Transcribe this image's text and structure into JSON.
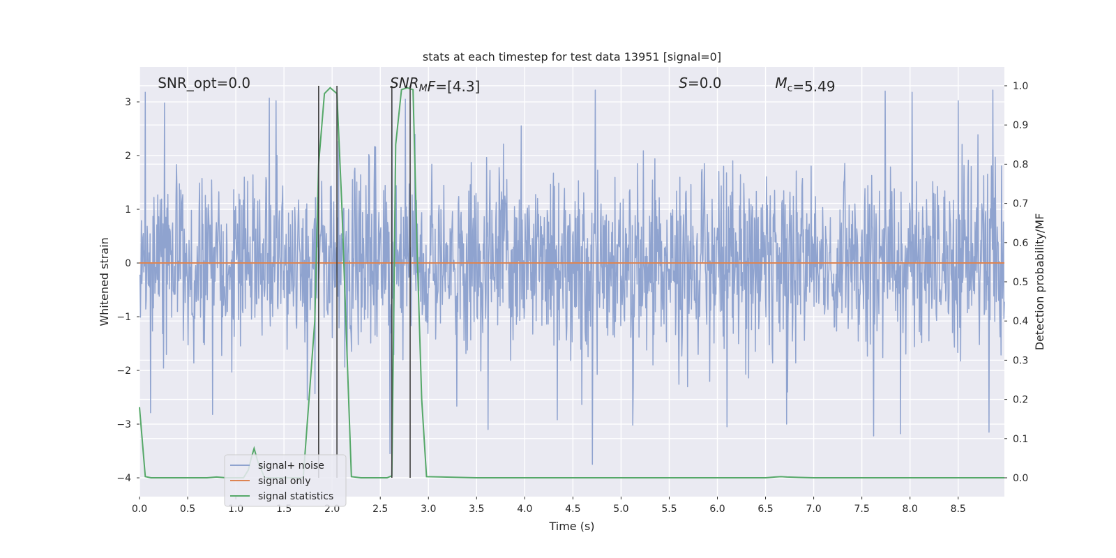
{
  "chart_data": {
    "type": "line",
    "title": "stats at each timestep for test data 13951 [signal=0]",
    "xlabel": "Time (s)",
    "ylabel": "Whitened strain",
    "y2label": "Detection probability/MF",
    "xlim": [
      0.0,
      8.98
    ],
    "ylim": [
      -4.35,
      3.65
    ],
    "y2lim": [
      -0.048,
      1.048
    ],
    "x_ticks": [
      0.0,
      0.5,
      1.0,
      1.5,
      2.0,
      2.5,
      3.0,
      3.5,
      4.0,
      4.5,
      5.0,
      5.5,
      6.0,
      6.5,
      7.0,
      7.5,
      8.0,
      8.5
    ],
    "x_tick_labels": [
      "0.0",
      "0.5",
      "1.0",
      "1.5",
      "2.0",
      "2.5",
      "3.0",
      "3.5",
      "4.0",
      "4.5",
      "5.0",
      "5.5",
      "6.0",
      "6.5",
      "7.0",
      "7.5",
      "8.0",
      "8.5"
    ],
    "y_ticks": [
      3,
      2,
      1,
      0,
      -1,
      -2,
      -3,
      -4
    ],
    "y_tick_labels": [
      "3",
      "2",
      "1",
      "0",
      "−1",
      "−2",
      "−3",
      "−4"
    ],
    "y2_ticks": [
      1.0,
      0.9,
      0.8,
      0.7,
      0.6,
      0.5,
      0.4,
      0.3,
      0.2,
      0.1,
      0.0
    ],
    "y2_tick_labels": [
      "1.0",
      "0.9",
      "0.8",
      "0.7",
      "0.6",
      "0.5",
      "0.4",
      "0.3",
      "0.2",
      "0.1",
      "0.0"
    ],
    "grid": true,
    "legend_position": "lower-left",
    "annotations": [
      {
        "id": "snr-opt",
        "x": 0.19,
        "y": 3.35,
        "parts": [
          {
            "t": "SNR_opt=0.0"
          }
        ]
      },
      {
        "id": "snr-mf",
        "x": 2.6,
        "y": 3.35,
        "parts": [
          {
            "t": "SNR",
            "italic": true
          },
          {
            "t": "M",
            "italic": true,
            "sub": true
          },
          {
            "t": "F",
            "italic": true
          },
          {
            "t": "=[4.3]"
          }
        ]
      },
      {
        "id": "s-value",
        "x": 5.6,
        "y": 3.35,
        "parts": [
          {
            "t": "S",
            "italic": true
          },
          {
            "t": "=0.0"
          }
        ]
      },
      {
        "id": "mc-value",
        "x": 6.6,
        "y": 3.35,
        "parts": [
          {
            "t": "M",
            "italic": true
          },
          {
            "t": "c",
            "sub": true
          },
          {
            "t": "=5.49"
          }
        ]
      }
    ],
    "vlines": {
      "x": [
        1.86,
        2.05,
        2.62,
        2.81
      ],
      "ymin": -4.0,
      "ymax": 3.3,
      "color": "#404040"
    },
    "series": [
      {
        "name": "signal+ noise",
        "color": "#8fa3cf",
        "axis": "left",
        "kind": "noise",
        "std": 0.85,
        "duration": 8.98,
        "samples": 1800,
        "spikes": [
          {
            "x": 0.06,
            "y": 3.18
          },
          {
            "x": 0.26,
            "y": 2.98
          },
          {
            "x": 1.35,
            "y": 3.07
          },
          {
            "x": 1.42,
            "y": 3.02
          },
          {
            "x": 2.62,
            "y": 3.22
          },
          {
            "x": 4.73,
            "y": 3.22
          },
          {
            "x": 7.74,
            "y": 3.2
          },
          {
            "x": 8.02,
            "y": 3.18
          },
          {
            "x": 8.86,
            "y": 3.22
          },
          {
            "x": 8.5,
            "y": 3.02
          },
          {
            "x": 4.7,
            "y": -3.75
          },
          {
            "x": 3.62,
            "y": -3.1
          },
          {
            "x": 7.62,
            "y": -3.22
          },
          {
            "x": 7.9,
            "y": -3.18
          },
          {
            "x": 8.82,
            "y": -3.15
          },
          {
            "x": 2.6,
            "y": -3.55
          },
          {
            "x": 0.76,
            "y": -2.82
          },
          {
            "x": 6.1,
            "y": -3.05
          },
          {
            "x": 5.12,
            "y": -3.02
          },
          {
            "x": 1.74,
            "y": -2.55
          },
          {
            "x": 2.76,
            "y": 3.05
          },
          {
            "x": 4.34,
            "y": -2.92
          },
          {
            "x": 6.72,
            "y": -3.0
          }
        ]
      },
      {
        "name": "signal only",
        "color": "#dd8452",
        "axis": "left",
        "kind": "line",
        "x": [
          0.0,
          8.98
        ],
        "y": [
          0.0,
          0.0
        ]
      },
      {
        "name": "signal statistics",
        "color": "#55a868",
        "axis": "right",
        "kind": "line",
        "x": [
          0.0,
          0.06,
          0.12,
          0.3,
          0.5,
          0.7,
          0.8,
          0.9,
          1.0,
          1.08,
          1.13,
          1.16,
          1.19,
          1.23,
          1.3,
          1.5,
          1.7,
          1.82,
          1.86,
          1.92,
          1.98,
          2.05,
          2.1,
          2.15,
          2.2,
          2.3,
          2.4,
          2.5,
          2.57,
          2.62,
          2.66,
          2.72,
          2.78,
          2.84,
          2.88,
          2.93,
          2.98,
          3.5,
          4.0,
          5.0,
          6.0,
          6.5,
          6.6,
          6.66,
          6.72,
          7.0,
          8.0,
          8.98
        ],
        "y": [
          0.18,
          0.003,
          0.0,
          0.0,
          0.0,
          0.0,
          0.002,
          0.0,
          0.0,
          0.0,
          0.02,
          0.05,
          0.075,
          0.04,
          0.0,
          0.0,
          0.0,
          0.4,
          0.8,
          0.98,
          0.995,
          0.98,
          0.7,
          0.35,
          0.003,
          0.0,
          0.0,
          0.0,
          0.0,
          0.005,
          0.85,
          0.99,
          0.995,
          0.99,
          0.6,
          0.2,
          0.003,
          0.0,
          0.0,
          0.0,
          0.0,
          0.0,
          0.002,
          0.003,
          0.002,
          0.0,
          0.0,
          0.0
        ]
      }
    ]
  }
}
